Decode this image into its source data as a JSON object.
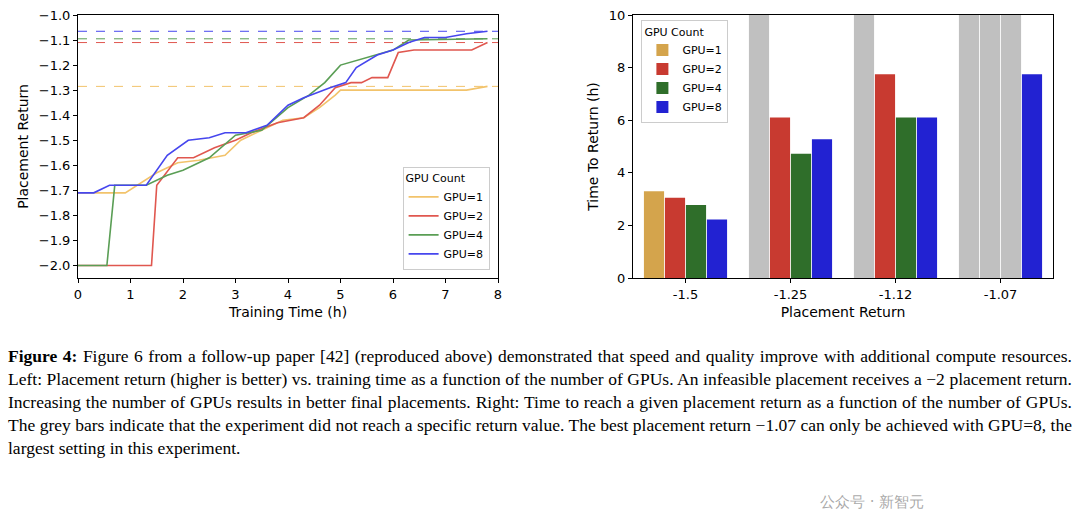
{
  "chart_data": [
    {
      "type": "line",
      "xlabel": "Training Time (h)",
      "ylabel": "Placement Return",
      "xlim": [
        0,
        8
      ],
      "xticks": [
        0,
        1,
        2,
        3,
        4,
        5,
        6,
        7,
        8
      ],
      "ylim": [
        -2.05,
        -1.0
      ],
      "yticks": [
        {
          "value": -2.0,
          "label": "−2.0"
        },
        {
          "value": -1.9,
          "label": "−1.9"
        },
        {
          "value": -1.8,
          "label": "−1.8"
        },
        {
          "value": -1.7,
          "label": "−1.7"
        },
        {
          "value": -1.6,
          "label": "−1.6"
        },
        {
          "value": -1.5,
          "label": "−1.5"
        },
        {
          "value": -1.4,
          "label": "−1.4"
        },
        {
          "value": -1.3,
          "label": "−1.3"
        },
        {
          "value": -1.2,
          "label": "−1.2"
        },
        {
          "value": -1.1,
          "label": "−1.1"
        },
        {
          "value": -1.0,
          "label": "−1.0"
        }
      ],
      "legend": "lower right",
      "legend_title": "GPU Count",
      "grid": false,
      "series": [
        {
          "name": "GPU=1",
          "color": "#f2c36b",
          "best": -1.285,
          "x": [
            0,
            0.9,
            1.5,
            1.9,
            2.3,
            2.8,
            3.1,
            3.4,
            3.9,
            4.3,
            4.6,
            4.9,
            5.0,
            7.4,
            7.8
          ],
          "values": [
            -1.71,
            -1.71,
            -1.63,
            -1.59,
            -1.58,
            -1.56,
            -1.5,
            -1.47,
            -1.42,
            -1.41,
            -1.37,
            -1.32,
            -1.3,
            -1.3,
            -1.285
          ]
        },
        {
          "name": "GPU=2",
          "color": "#e0574f",
          "best": -1.11,
          "x": [
            0,
            1.4,
            1.5,
            1.9,
            2.2,
            2.6,
            3.0,
            3.3,
            3.8,
            4.3,
            4.6,
            4.9,
            5.2,
            5.4,
            5.6,
            5.9,
            6.1,
            6.4,
            7.5,
            7.8
          ],
          "values": [
            -2.0,
            -2.0,
            -1.68,
            -1.57,
            -1.57,
            -1.53,
            -1.5,
            -1.47,
            -1.43,
            -1.41,
            -1.36,
            -1.29,
            -1.27,
            -1.27,
            -1.25,
            -1.25,
            -1.15,
            -1.14,
            -1.14,
            -1.11
          ]
        },
        {
          "name": "GPU=4",
          "color": "#5a9e55",
          "best": -1.095,
          "x": [
            0,
            0.55,
            0.7,
            1.3,
            1.7,
            2.0,
            2.5,
            3.0,
            3.5,
            4.0,
            4.4,
            4.7,
            5.0,
            5.5,
            6.0,
            6.3,
            7.8
          ],
          "values": [
            -2.0,
            -2.0,
            -1.68,
            -1.68,
            -1.64,
            -1.62,
            -1.57,
            -1.48,
            -1.46,
            -1.37,
            -1.32,
            -1.27,
            -1.2,
            -1.17,
            -1.14,
            -1.1,
            -1.095
          ]
        },
        {
          "name": "GPU=8",
          "color": "#4646ee",
          "best": -1.065,
          "x": [
            0,
            0.3,
            0.6,
            1.3,
            1.7,
            2.1,
            2.5,
            2.8,
            3.2,
            3.6,
            4.0,
            4.3,
            4.8,
            5.1,
            5.3,
            5.7,
            6.0,
            6.3,
            6.6,
            7.0,
            7.4,
            7.8
          ],
          "values": [
            -1.71,
            -1.71,
            -1.68,
            -1.68,
            -1.56,
            -1.5,
            -1.49,
            -1.47,
            -1.47,
            -1.44,
            -1.36,
            -1.33,
            -1.29,
            -1.27,
            -1.21,
            -1.16,
            -1.14,
            -1.11,
            -1.09,
            -1.09,
            -1.075,
            -1.065
          ]
        }
      ]
    },
    {
      "type": "bar",
      "xlabel": "Placement Return",
      "ylabel": "Time To Return (h)",
      "categories": [
        "-1.5",
        "-1.25",
        "-1.12",
        "-1.07"
      ],
      "ylim": [
        0,
        10
      ],
      "yticks": [
        0,
        2,
        4,
        6,
        8,
        10
      ],
      "legend": "upper left",
      "legend_title": "GPU Count",
      "grid": false,
      "series": [
        {
          "name": "GPU=1",
          "color": "#d4a44c",
          "values": [
            3.3,
            10,
            10,
            10
          ],
          "colors": [
            "#d4a44c",
            "#c0c0c0",
            "#c0c0c0",
            "#c0c0c0"
          ]
        },
        {
          "name": "GPU=2",
          "color": "#c83a30",
          "values": [
            3.05,
            6.1,
            7.75,
            10
          ],
          "colors": [
            "#c83a30",
            "#c83a30",
            "#c83a30",
            "#c0c0c0"
          ]
        },
        {
          "name": "GPU=4",
          "color": "#2f6e2a",
          "values": [
            2.78,
            4.72,
            6.1,
            10
          ],
          "colors": [
            "#2f6e2a",
            "#2f6e2a",
            "#2f6e2a",
            "#c0c0c0"
          ]
        },
        {
          "name": "GPU=8",
          "color": "#2222d2",
          "values": [
            2.22,
            5.28,
            6.1,
            7.75
          ],
          "colors": [
            "#2222d2",
            "#2222d2",
            "#2222d2",
            "#2222d2"
          ]
        }
      ]
    }
  ],
  "caption": {
    "label": "Figure 4:",
    "text": "Figure 6 from a follow-up paper [42] (reproduced above) demonstrated that speed and quality improve with additional compute resources. Left: Placement return (higher is better) vs. training time as a function of the number of GPUs. An infeasible placement receives a −2 placement return. Increasing the number of GPUs results in better final placements. Right: Time to reach a given placement return as a function of the number of GPUs. The grey bars indicate that the experiment did not reach a specific return value. The best placement return −1.07 can only be achieved with GPU=8, the largest setting in this experiment."
  },
  "watermark": "公众号 · 新智元"
}
